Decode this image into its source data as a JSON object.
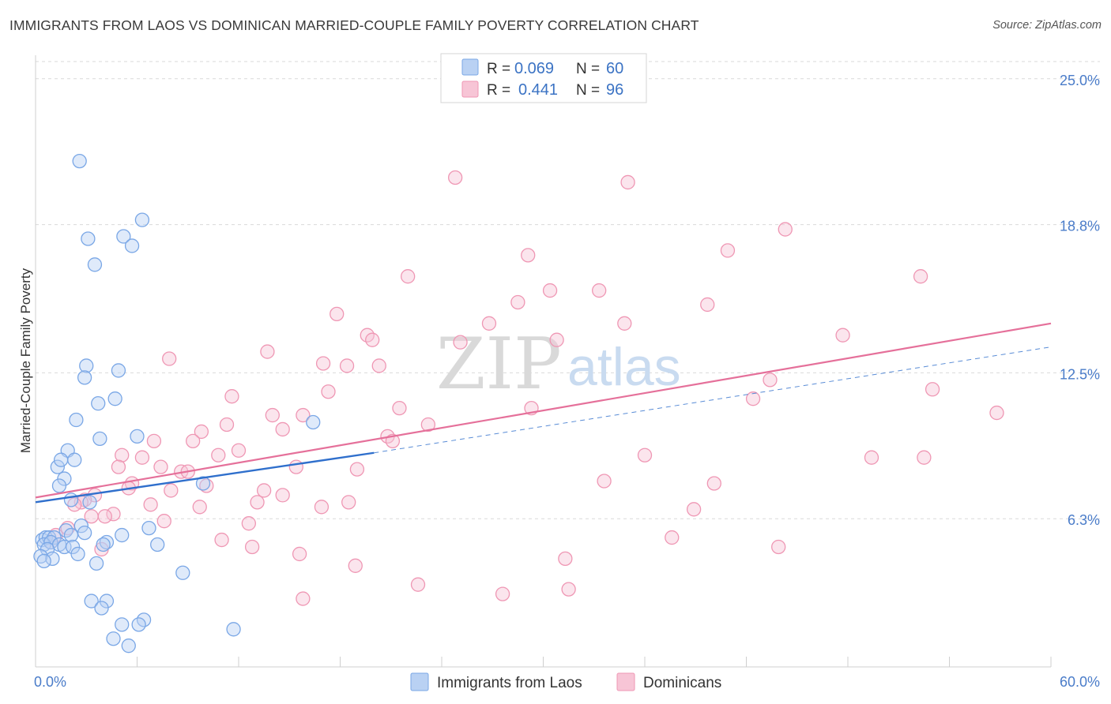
{
  "header": {
    "title": "IMMIGRANTS FROM LAOS VS DOMINICAN MARRIED-COUPLE FAMILY POVERTY CORRELATION CHART",
    "source": "Source: ZipAtlas.com"
  },
  "watermark": {
    "zip": "ZIP",
    "atlas": "atlas"
  },
  "colors": {
    "blue": "#7aa7e6",
    "blue_fill": "#b9d1f3",
    "blue_line": "#2f6fcc",
    "pink": "#ef97b4",
    "pink_fill": "#f7c5d6",
    "pink_line": "#e5709a",
    "grid": "#d9d9d9",
    "tick_text": "#4a7cc9"
  },
  "legend": {
    "rows": [
      {
        "r_label": "R =",
        "r_value": "0.069",
        "n_label": "N =",
        "n_value": "60"
      },
      {
        "r_label": "R =",
        "r_value": "0.441",
        "n_label": "N =",
        "n_value": "96"
      }
    ]
  },
  "chart_data": {
    "type": "scatter",
    "title": "IMMIGRANTS FROM LAOS VS DOMINICAN MARRIED-COUPLE FAMILY POVERTY CORRELATION CHART",
    "xlabel": "",
    "ylabel": "Married-Couple Family Poverty",
    "xlim": [
      0,
      60
    ],
    "ylim": [
      0,
      26
    ],
    "x_tick_labels": [
      "0.0%",
      "60.0%"
    ],
    "y_ticks": [
      6.3,
      12.5,
      18.8,
      25.0
    ],
    "y_tick_labels": [
      "6.3%",
      "12.5%",
      "18.8%",
      "25.0%"
    ],
    "legend_position": "top-center",
    "series": [
      {
        "name": "Immigrants from Laos",
        "R": 0.069,
        "N": 60,
        "trend": {
          "x_start": 0,
          "y_start": 7.0,
          "x_end": 20,
          "y_end": 9.1,
          "dashed_to_x": 60,
          "dashed_to_y": 13.6
        },
        "points": [
          [
            2.6,
            21.5
          ],
          [
            3.1,
            18.2
          ],
          [
            5.2,
            18.3
          ],
          [
            6.3,
            19.0
          ],
          [
            5.7,
            17.9
          ],
          [
            3.5,
            17.1
          ],
          [
            3.0,
            12.8
          ],
          [
            4.9,
            12.6
          ],
          [
            2.9,
            12.3
          ],
          [
            4.7,
            11.4
          ],
          [
            3.7,
            11.2
          ],
          [
            2.4,
            10.5
          ],
          [
            16.4,
            10.4
          ],
          [
            6.0,
            9.8
          ],
          [
            3.8,
            9.7
          ],
          [
            1.9,
            9.2
          ],
          [
            1.3,
            8.5
          ],
          [
            1.5,
            8.8
          ],
          [
            2.3,
            8.8
          ],
          [
            1.7,
            8.0
          ],
          [
            1.4,
            7.7
          ],
          [
            9.9,
            7.8
          ],
          [
            2.1,
            7.1
          ],
          [
            3.2,
            7.0
          ],
          [
            2.7,
            6.0
          ],
          [
            1.8,
            5.8
          ],
          [
            6.7,
            5.9
          ],
          [
            5.1,
            5.6
          ],
          [
            2.9,
            5.7
          ],
          [
            2.1,
            5.6
          ],
          [
            0.4,
            5.4
          ],
          [
            0.6,
            5.5
          ],
          [
            0.8,
            5.5
          ],
          [
            1.1,
            5.5
          ],
          [
            0.5,
            5.2
          ],
          [
            0.9,
            5.3
          ],
          [
            1.4,
            5.2
          ],
          [
            1.7,
            5.1
          ],
          [
            2.2,
            5.1
          ],
          [
            0.7,
            5.0
          ],
          [
            0.3,
            4.7
          ],
          [
            4.2,
            5.3
          ],
          [
            7.2,
            5.2
          ],
          [
            4.0,
            5.2
          ],
          [
            2.5,
            4.8
          ],
          [
            1.0,
            4.6
          ],
          [
            0.5,
            4.5
          ],
          [
            3.6,
            4.4
          ],
          [
            8.7,
            4.0
          ],
          [
            3.3,
            2.8
          ],
          [
            4.2,
            2.8
          ],
          [
            3.9,
            2.5
          ],
          [
            6.4,
            2.0
          ],
          [
            6.1,
            1.8
          ],
          [
            5.1,
            1.8
          ],
          [
            11.7,
            1.6
          ],
          [
            4.6,
            1.2
          ],
          [
            5.5,
            0.9
          ]
        ]
      },
      {
        "name": "Dominicans",
        "R": 0.441,
        "N": 96,
        "trend": {
          "x_start": 0,
          "y_start": 7.2,
          "x_end": 60,
          "y_end": 14.6
        },
        "points": [
          [
            24.8,
            20.8
          ],
          [
            35.0,
            20.6
          ],
          [
            44.3,
            18.6
          ],
          [
            40.9,
            17.7
          ],
          [
            29.1,
            17.5
          ],
          [
            22.0,
            16.6
          ],
          [
            52.3,
            16.6
          ],
          [
            30.4,
            16.0
          ],
          [
            33.3,
            16.0
          ],
          [
            28.5,
            15.5
          ],
          [
            39.7,
            15.4
          ],
          [
            17.8,
            15.0
          ],
          [
            26.8,
            14.6
          ],
          [
            34.8,
            14.6
          ],
          [
            19.6,
            14.1
          ],
          [
            19.9,
            13.9
          ],
          [
            30.8,
            13.9
          ],
          [
            47.7,
            14.1
          ],
          [
            25.1,
            13.8
          ],
          [
            13.7,
            13.4
          ],
          [
            7.9,
            13.1
          ],
          [
            17.0,
            12.9
          ],
          [
            18.4,
            12.8
          ],
          [
            20.3,
            12.8
          ],
          [
            43.4,
            12.2
          ],
          [
            53.0,
            11.8
          ],
          [
            11.6,
            11.5
          ],
          [
            17.3,
            11.7
          ],
          [
            21.5,
            11.0
          ],
          [
            29.3,
            11.0
          ],
          [
            42.4,
            11.4
          ],
          [
            56.8,
            10.8
          ],
          [
            14.0,
            10.7
          ],
          [
            15.8,
            10.7
          ],
          [
            23.2,
            10.3
          ],
          [
            11.3,
            10.3
          ],
          [
            9.8,
            10.0
          ],
          [
            14.6,
            10.1
          ],
          [
            20.8,
            9.8
          ],
          [
            7.0,
            9.6
          ],
          [
            9.3,
            9.6
          ],
          [
            21.1,
            9.6
          ],
          [
            12.0,
            9.2
          ],
          [
            10.8,
            9.0
          ],
          [
            5.1,
            9.0
          ],
          [
            6.3,
            8.9
          ],
          [
            36.0,
            9.0
          ],
          [
            49.4,
            8.9
          ],
          [
            52.5,
            8.9
          ],
          [
            4.9,
            8.5
          ],
          [
            7.4,
            8.5
          ],
          [
            8.6,
            8.3
          ],
          [
            9.0,
            8.3
          ],
          [
            15.4,
            8.5
          ],
          [
            19.0,
            8.4
          ],
          [
            33.6,
            7.9
          ],
          [
            40.1,
            7.8
          ],
          [
            5.7,
            7.8
          ],
          [
            5.5,
            7.6
          ],
          [
            10.1,
            7.7
          ],
          [
            8.0,
            7.5
          ],
          [
            13.5,
            7.5
          ],
          [
            14.6,
            7.3
          ],
          [
            3.5,
            7.3
          ],
          [
            2.9,
            7.1
          ],
          [
            2.7,
            7.0
          ],
          [
            2.3,
            6.9
          ],
          [
            6.8,
            6.9
          ],
          [
            13.1,
            7.0
          ],
          [
            18.5,
            7.0
          ],
          [
            9.7,
            6.8
          ],
          [
            16.9,
            6.8
          ],
          [
            38.9,
            6.7
          ],
          [
            4.6,
            6.5
          ],
          [
            4.1,
            6.4
          ],
          [
            3.3,
            6.4
          ],
          [
            7.6,
            6.2
          ],
          [
            12.6,
            6.1
          ],
          [
            1.9,
            5.9
          ],
          [
            1.2,
            5.6
          ],
          [
            11.0,
            5.4
          ],
          [
            37.6,
            5.5
          ],
          [
            0.9,
            5.3
          ],
          [
            3.9,
            5.0
          ],
          [
            12.8,
            5.1
          ],
          [
            15.6,
            4.8
          ],
          [
            43.9,
            5.1
          ],
          [
            31.3,
            4.6
          ],
          [
            18.9,
            4.3
          ],
          [
            22.6,
            3.5
          ],
          [
            31.5,
            3.3
          ],
          [
            27.6,
            3.1
          ],
          [
            15.8,
            2.9
          ]
        ]
      }
    ]
  },
  "bottom_legend": [
    {
      "label": "Immigrants from Laos"
    },
    {
      "label": "Dominicans"
    }
  ]
}
